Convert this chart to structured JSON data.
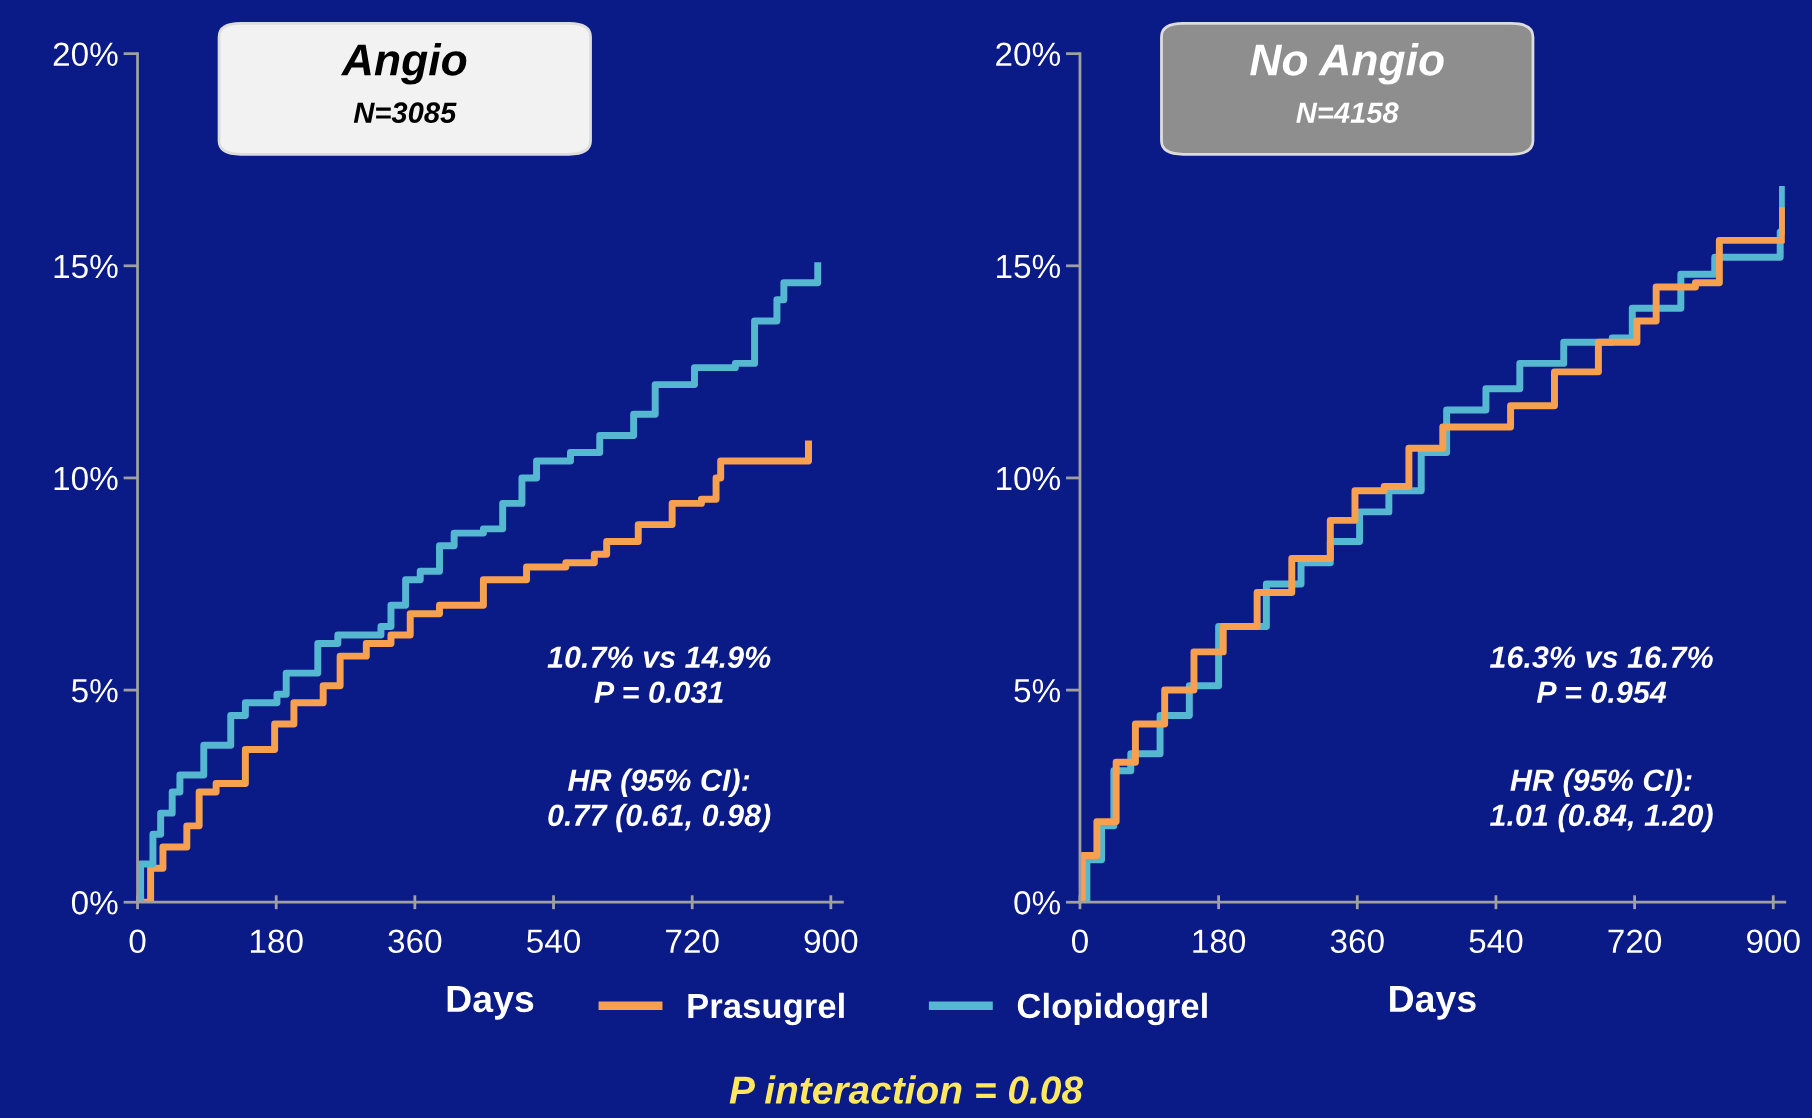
{
  "chart_data": [
    {
      "type": "step",
      "xlabel": "Days",
      "xlim": [
        0,
        915
      ],
      "xticks": [
        0,
        180,
        360,
        540,
        720,
        900
      ],
      "ylim": [
        0,
        20
      ],
      "yticks": [
        {
          "value": 0,
          "label": "0%"
        },
        {
          "value": 5,
          "label": "5%"
        },
        {
          "value": 10,
          "label": "10%"
        },
        {
          "value": 15,
          "label": "15%"
        },
        {
          "value": 20,
          "label": "20%"
        }
      ],
      "grid": false,
      "legend": "bottom",
      "line_style": "solid",
      "marker": "none",
      "annotations": [
        "Angio",
        "N=3085",
        "10.7% vs 14.9%\nP = 0.031",
        "HR (95% CI):\n0.77 (0.61, 0.98)",
        "P interaction = 0.08"
      ],
      "series": [
        {
          "name": "Prasugrel",
          "color": "#f7a050",
          "x": [
            0,
            17,
            33,
            64,
            80,
            102,
            140,
            178,
            203,
            241,
            263,
            297,
            329,
            354,
            392,
            449,
            505,
            556,
            593,
            609,
            650,
            694,
            732,
            751,
            757,
            871,
            871
          ],
          "values": [
            0,
            0.8,
            1.3,
            1.8,
            2.6,
            2.8,
            3.6,
            4.2,
            4.7,
            5.1,
            5.8,
            6.1,
            6.3,
            6.8,
            7.0,
            7.6,
            7.9,
            8.0,
            8.2,
            8.5,
            8.9,
            9.4,
            9.5,
            10.0,
            10.4,
            10.4,
            10.8
          ]
        },
        {
          "name": "Clopidogrel",
          "color": "#55b8d0",
          "x": [
            0,
            4,
            20,
            30,
            45,
            55,
            86,
            121,
            140,
            181,
            193,
            234,
            260,
            316,
            329,
            348,
            367,
            392,
            411,
            449,
            474,
            499,
            518,
            562,
            600,
            644,
            672,
            723,
            776,
            801,
            830,
            839,
            883,
            883
          ],
          "values": [
            0,
            0.9,
            1.6,
            2.1,
            2.6,
            3.0,
            3.7,
            4.4,
            4.7,
            4.9,
            5.4,
            6.1,
            6.3,
            6.5,
            7.0,
            7.6,
            7.8,
            8.4,
            8.7,
            8.8,
            9.4,
            10.0,
            10.4,
            10.6,
            11.0,
            11.5,
            12.2,
            12.6,
            12.7,
            13.7,
            14.2,
            14.6,
            14.6,
            15.0
          ]
        }
      ]
    },
    {
      "type": "step",
      "xlabel": "Days",
      "xlim": [
        0,
        915
      ],
      "xticks": [
        0,
        180,
        360,
        540,
        720,
        900
      ],
      "ylim": [
        0,
        20
      ],
      "yticks": [
        {
          "value": 0,
          "label": "0%"
        },
        {
          "value": 5,
          "label": "5%"
        },
        {
          "value": 10,
          "label": "10%"
        },
        {
          "value": 15,
          "label": "15%"
        },
        {
          "value": 20,
          "label": "20%"
        }
      ],
      "grid": false,
      "line_style": "solid",
      "marker": "none",
      "annotations": [
        "No Angio",
        "N=4158",
        "16.3% vs 16.7%\nP = 0.954",
        "HR (95% CI):\n1.01 (0.84, 1.20)"
      ],
      "series": [
        {
          "color": "#55b8d0",
          "x": [
            0,
            9,
            28,
            44,
            66,
            104,
            142,
            180,
            242,
            287,
            325,
            363,
            401,
            443,
            476,
            527,
            571,
            628,
            691,
            717,
            780,
            824,
            909,
            909,
            912
          ],
          "values": [
            0,
            1.0,
            1.8,
            3.1,
            3.5,
            4.4,
            5.1,
            6.5,
            7.5,
            8.0,
            8.5,
            9.2,
            9.7,
            10.6,
            11.6,
            12.1,
            12.7,
            13.2,
            13.3,
            14.0,
            14.8,
            15.2,
            15.2,
            15.8,
            16.8
          ]
        },
        {
          "color": "#f7a050",
          "x": [
            0,
            3,
            22,
            47,
            72,
            110,
            148,
            186,
            230,
            275,
            325,
            357,
            395,
            427,
            471,
            508,
            559,
            616,
            673,
            723,
            748,
            799,
            830,
            909,
            912
          ],
          "values": [
            0,
            1.1,
            1.9,
            3.3,
            4.2,
            5.0,
            5.9,
            6.5,
            7.3,
            8.1,
            9.0,
            9.7,
            9.8,
            10.7,
            11.2,
            11.2,
            11.7,
            12.5,
            13.2,
            13.7,
            14.5,
            14.6,
            15.6,
            15.6,
            16.3
          ]
        }
      ]
    }
  ]
}
